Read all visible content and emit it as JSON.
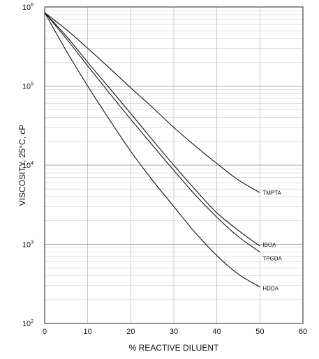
{
  "chart_data": {
    "type": "line",
    "title": "",
    "xlabel": "% REACTIVE DILUENT",
    "ylabel": "VISCOSITY, 25°C, cP",
    "xlim": [
      0,
      60
    ],
    "ylim": [
      100,
      1000000
    ],
    "yscale": "log",
    "grid": true,
    "xticks": [
      "0",
      "10",
      "20",
      "30",
      "40",
      "50",
      "60"
    ],
    "yticks": [
      {
        "base": "10",
        "exp": "2"
      },
      {
        "base": "10",
        "exp": "3"
      },
      {
        "base": "10",
        "exp": "4"
      },
      {
        "base": "10",
        "exp": "5"
      },
      {
        "base": "10",
        "exp": "6"
      }
    ],
    "series": [
      {
        "name": "TMPTA",
        "x": [
          0,
          5,
          10,
          15,
          20,
          25,
          30,
          35,
          40,
          45,
          50
        ],
        "y": [
          850000,
          520000,
          300000,
          170000,
          95000,
          54000,
          30000,
          17500,
          10500,
          6500,
          4500
        ]
      },
      {
        "name": "IBOA",
        "x": [
          0,
          5,
          10,
          15,
          20,
          25,
          30,
          35,
          40,
          45,
          50
        ],
        "y": [
          850000,
          430000,
          200000,
          95000,
          45000,
          21000,
          10000,
          4900,
          2500,
          1500,
          950
        ]
      },
      {
        "name": "TPGDA",
        "x": [
          0,
          5,
          10,
          15,
          20,
          25,
          30,
          35,
          40,
          45,
          50
        ],
        "y": [
          850000,
          400000,
          180000,
          82000,
          38000,
          18000,
          8600,
          4200,
          2200,
          1250,
          800
        ]
      },
      {
        "name": "HDDA",
        "x": [
          0,
          5,
          10,
          15,
          20,
          25,
          30,
          35,
          40,
          45,
          50
        ],
        "y": [
          850000,
          280000,
          100000,
          38000,
          15000,
          6500,
          3000,
          1400,
          720,
          420,
          290
        ]
      }
    ]
  }
}
